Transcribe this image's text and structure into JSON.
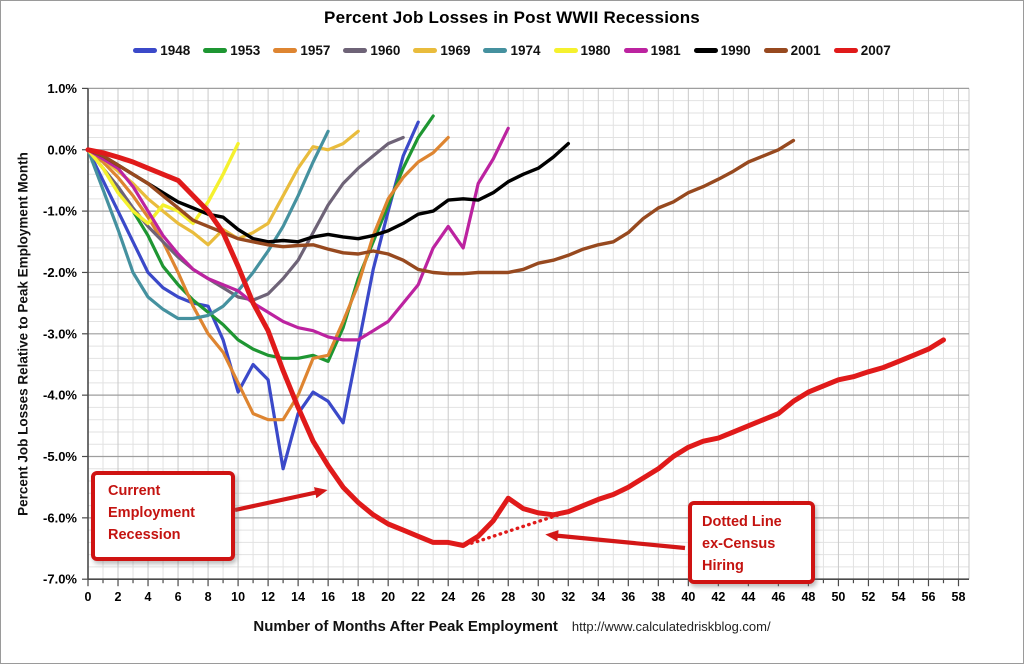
{
  "header": {
    "title": "Percent Job Losses in Post WWII Recessions"
  },
  "footer": {
    "xlabel": "Number of Months After Peak Employment",
    "url": "http://www.calculatedriskblog.com/"
  },
  "chart_data": {
    "type": "line",
    "title": "Percent Job Losses in Post WWII Recessions",
    "xlabel": "Number of Months After Peak Employment",
    "ylabel": "Percent Job Losses Relative to Peak Employment Month",
    "xlim": [
      0,
      58.7
    ],
    "ylim": [
      -7.0,
      1.0
    ],
    "grid": "on",
    "legend_position": "top",
    "x_ticks": [
      0,
      2,
      4,
      6,
      8,
      10,
      12,
      14,
      16,
      18,
      20,
      22,
      24,
      26,
      28,
      30,
      32,
      34,
      36,
      38,
      40,
      42,
      44,
      46,
      48,
      50,
      52,
      54,
      56,
      58
    ],
    "y_ticks": [
      {
        "v": 1.0,
        "label": "1.0%"
      },
      {
        "v": 0.0,
        "label": "0.0%"
      },
      {
        "v": -1.0,
        "label": "-1.0%"
      },
      {
        "v": -2.0,
        "label": "-2.0%"
      },
      {
        "v": -3.0,
        "label": "-3.0%"
      },
      {
        "v": -4.0,
        "label": "-4.0%"
      },
      {
        "v": -5.0,
        "label": "-5.0%"
      },
      {
        "v": -6.0,
        "label": "-6.0%"
      },
      {
        "v": -7.0,
        "label": "-7.0%"
      }
    ],
    "series": [
      {
        "name": "1948",
        "color": "#3B49C9",
        "width": 3.2,
        "values": [
          0,
          -0.5,
          -1.0,
          -1.5,
          -2.0,
          -2.25,
          -2.4,
          -2.5,
          -2.55,
          -3.1,
          -3.95,
          -3.5,
          -3.75,
          -5.2,
          -4.3,
          -3.95,
          -4.1,
          -4.45,
          -3.2,
          -1.95,
          -1.0,
          -0.1,
          0.45
        ]
      },
      {
        "name": "1953",
        "color": "#1E9632",
        "width": 3.2,
        "values": [
          0,
          -0.3,
          -0.65,
          -1.0,
          -1.4,
          -1.9,
          -2.2,
          -2.45,
          -2.65,
          -2.85,
          -3.1,
          -3.25,
          -3.35,
          -3.4,
          -3.4,
          -3.35,
          -3.45,
          -2.9,
          -2.1,
          -1.5,
          -0.9,
          -0.3,
          0.2,
          0.55
        ]
      },
      {
        "name": "1957",
        "color": "#DE8531",
        "width": 3.2,
        "values": [
          0,
          -0.2,
          -0.45,
          -0.75,
          -1.1,
          -1.5,
          -2.0,
          -2.55,
          -3.0,
          -3.3,
          -3.8,
          -4.3,
          -4.4,
          -4.4,
          -4.0,
          -3.4,
          -3.35,
          -2.8,
          -2.2,
          -1.4,
          -0.8,
          -0.45,
          -0.2,
          -0.05,
          0.2
        ]
      },
      {
        "name": "1960",
        "color": "#6E6377",
        "width": 3.2,
        "values": [
          0,
          -0.3,
          -0.6,
          -0.95,
          -1.25,
          -1.5,
          -1.75,
          -1.95,
          -2.1,
          -2.25,
          -2.4,
          -2.45,
          -2.35,
          -2.1,
          -1.8,
          -1.35,
          -0.9,
          -0.55,
          -0.3,
          -0.1,
          0.1,
          0.2
        ]
      },
      {
        "name": "1969",
        "color": "#E9BC3C",
        "width": 3.2,
        "values": [
          0,
          -0.15,
          -0.35,
          -0.55,
          -0.8,
          -1.0,
          -1.2,
          -1.35,
          -1.55,
          -1.3,
          -1.45,
          -1.35,
          -1.2,
          -0.75,
          -0.3,
          0.05,
          0.0,
          0.1,
          0.3
        ]
      },
      {
        "name": "1974",
        "color": "#45919F",
        "width": 3.2,
        "values": [
          0,
          -0.65,
          -1.3,
          -2.0,
          -2.4,
          -2.6,
          -2.75,
          -2.75,
          -2.7,
          -2.55,
          -2.3,
          -2.0,
          -1.65,
          -1.25,
          -0.75,
          -0.2,
          0.3
        ]
      },
      {
        "name": "1980",
        "color": "#F5F12E",
        "width": 3.4,
        "values": [
          0,
          -0.3,
          -0.7,
          -1.0,
          -1.2,
          -0.9,
          -1.0,
          -1.2,
          -0.85,
          -0.4,
          0.1
        ]
      },
      {
        "name": "1981",
        "color": "#BC23A0",
        "width": 3.2,
        "values": [
          0,
          -0.15,
          -0.3,
          -0.6,
          -1.0,
          -1.4,
          -1.7,
          -1.95,
          -2.1,
          -2.2,
          -2.3,
          -2.5,
          -2.65,
          -2.8,
          -2.9,
          -2.95,
          -3.05,
          -3.1,
          -3.1,
          -2.95,
          -2.8,
          -2.5,
          -2.2,
          -1.6,
          -1.25,
          -1.6,
          -0.55,
          -0.15,
          0.35
        ]
      },
      {
        "name": "1990",
        "color": "#000000",
        "width": 3.4,
        "values": [
          0,
          -0.1,
          -0.25,
          -0.4,
          -0.55,
          -0.7,
          -0.85,
          -0.95,
          -1.05,
          -1.1,
          -1.3,
          -1.45,
          -1.5,
          -1.48,
          -1.5,
          -1.42,
          -1.38,
          -1.42,
          -1.45,
          -1.4,
          -1.32,
          -1.2,
          -1.05,
          -1.0,
          -0.82,
          -0.8,
          -0.82,
          -0.7,
          -0.52,
          -0.4,
          -0.3,
          -0.12,
          0.1
        ]
      },
      {
        "name": "2001",
        "color": "#97491F",
        "width": 3.4,
        "values": [
          0,
          -0.1,
          -0.25,
          -0.4,
          -0.55,
          -0.75,
          -0.95,
          -1.15,
          -1.25,
          -1.35,
          -1.45,
          -1.5,
          -1.55,
          -1.58,
          -1.56,
          -1.55,
          -1.62,
          -1.68,
          -1.7,
          -1.65,
          -1.7,
          -1.8,
          -1.95,
          -2.0,
          -2.02,
          -2.02,
          -2.0,
          -2.0,
          -2.0,
          -1.95,
          -1.85,
          -1.8,
          -1.72,
          -1.62,
          -1.55,
          -1.5,
          -1.35,
          -1.12,
          -0.95,
          -0.85,
          -0.7,
          -0.6,
          -0.48,
          -0.35,
          -0.2,
          -0.1,
          0.0,
          0.15
        ]
      },
      {
        "name": "2007",
        "color": "#E01A1A",
        "width": 5,
        "values": [
          0,
          -0.05,
          -0.12,
          -0.2,
          -0.3,
          -0.4,
          -0.5,
          -0.75,
          -1.0,
          -1.35,
          -1.9,
          -2.5,
          -2.95,
          -3.6,
          -4.2,
          -4.75,
          -5.15,
          -5.5,
          -5.75,
          -5.95,
          -6.1,
          -6.2,
          -6.3,
          -6.4,
          -6.4,
          -6.45,
          -6.3,
          -6.05,
          -5.68,
          -5.85,
          -5.92,
          -5.95,
          -5.9,
          -5.8,
          -5.7,
          -5.62,
          -5.5,
          -5.35,
          -5.2,
          -5.0,
          -4.85,
          -4.75,
          -4.7,
          -4.6,
          -4.5,
          -4.4,
          -4.3,
          -4.1,
          -3.95,
          -3.85,
          -3.75,
          -3.7,
          -3.62,
          -3.55,
          -3.45,
          -3.35,
          -3.25,
          -3.1
        ]
      },
      {
        "name": "2007 ex-Census Hiring",
        "color": "#E01A1A",
        "width": 3.4,
        "dotted": true,
        "legend": false,
        "x_start": 24,
        "values": [
          -6.4,
          -6.45,
          -6.38,
          -6.3,
          -6.22,
          -6.14,
          -6.06,
          -5.98,
          -5.9
        ]
      }
    ],
    "annotations": [
      {
        "id": "current-employment-recession",
        "text": "Current\nEmployment\nRecession"
      },
      {
        "id": "dotted-ex-census-hiring",
        "text": "Dotted Line\nex-Census\nHiring"
      }
    ]
  }
}
